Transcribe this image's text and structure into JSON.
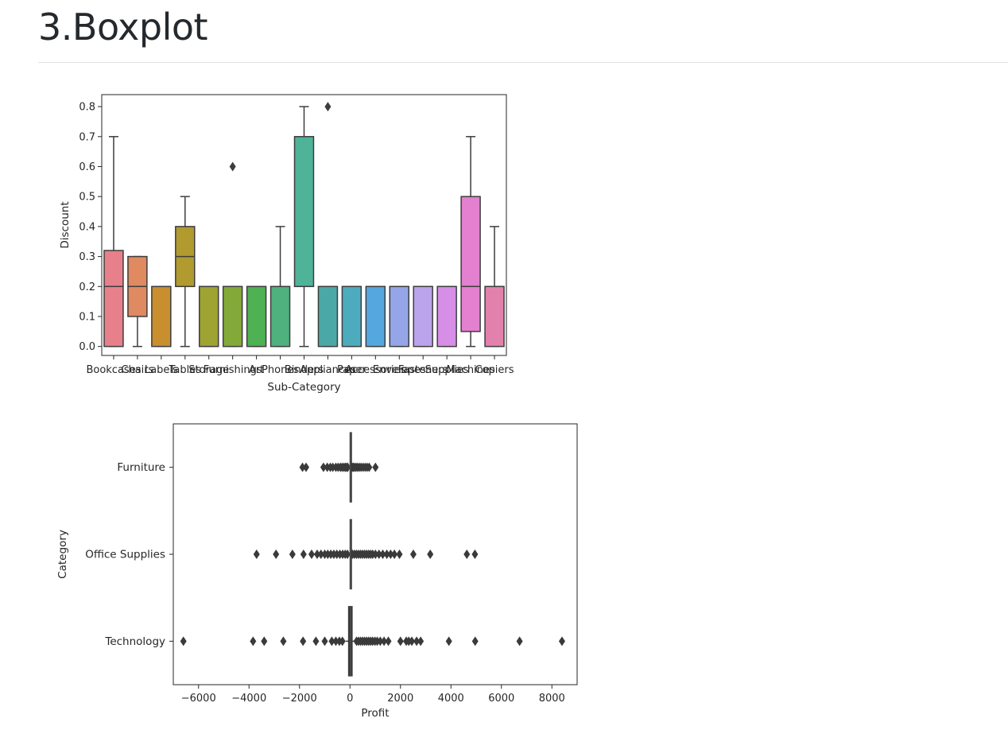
{
  "page": {
    "heading": "3.Boxplot"
  },
  "chart_data": [
    {
      "type": "boxplot",
      "orientation": "vertical",
      "xlabel": "Sub-Category",
      "ylabel": "Discount",
      "ylim": [
        -0.03,
        0.84
      ],
      "yticks": [
        "0.0",
        "0.1",
        "0.2",
        "0.3",
        "0.4",
        "0.5",
        "0.6",
        "0.7",
        "0.8"
      ],
      "categories": [
        "Bookcases",
        "Chairs",
        "Labels",
        "Tables",
        "Storage",
        "Furnishings",
        "Art",
        "Phones",
        "Binders",
        "Appliances",
        "Paper",
        "Accessories",
        "Envelopes",
        "Fasteners",
        "Supplies",
        "Machines",
        "Copiers"
      ],
      "boxes": [
        {
          "q1": 0.0,
          "median": 0.2,
          "q3": 0.32,
          "whisker_low": 0.0,
          "whisker_high": 0.7,
          "fliers": [],
          "color": "#e8808c"
        },
        {
          "q1": 0.1,
          "median": 0.2,
          "q3": 0.3,
          "whisker_low": 0.0,
          "whisker_high": 0.3,
          "fliers": [],
          "color": "#df8a60"
        },
        {
          "q1": 0.0,
          "median": 0.2,
          "q3": 0.2,
          "whisker_low": 0.0,
          "whisker_high": 0.2,
          "fliers": [],
          "color": "#c98e2e"
        },
        {
          "q1": 0.2,
          "median": 0.3,
          "q3": 0.4,
          "whisker_low": 0.0,
          "whisker_high": 0.5,
          "fliers": [],
          "color": "#b19a2e"
        },
        {
          "q1": 0.0,
          "median": 0.2,
          "q3": 0.2,
          "whisker_low": 0.0,
          "whisker_high": 0.2,
          "fliers": [],
          "color": "#9ea332"
        },
        {
          "q1": 0.0,
          "median": 0.2,
          "q3": 0.2,
          "whisker_low": 0.0,
          "whisker_high": 0.2,
          "fliers": [
            0.6
          ],
          "color": "#83aa38"
        },
        {
          "q1": 0.0,
          "median": 0.2,
          "q3": 0.2,
          "whisker_low": 0.0,
          "whisker_high": 0.2,
          "fliers": [],
          "color": "#4eb153"
        },
        {
          "q1": 0.0,
          "median": 0.2,
          "q3": 0.2,
          "whisker_low": 0.0,
          "whisker_high": 0.4,
          "fliers": [],
          "color": "#4fb17e"
        },
        {
          "q1": 0.2,
          "median": 0.2,
          "q3": 0.7,
          "whisker_low": 0.0,
          "whisker_high": 0.8,
          "fliers": [],
          "color": "#4fb39a"
        },
        {
          "q1": 0.0,
          "median": 0.2,
          "q3": 0.2,
          "whisker_low": 0.0,
          "whisker_high": 0.2,
          "fliers": [
            0.8
          ],
          "color": "#4aa9a6"
        },
        {
          "q1": 0.0,
          "median": 0.2,
          "q3": 0.2,
          "whisker_low": 0.0,
          "whisker_high": 0.2,
          "fliers": [],
          "color": "#4cacbe"
        },
        {
          "q1": 0.0,
          "median": 0.2,
          "q3": 0.2,
          "whisker_low": 0.0,
          "whisker_high": 0.2,
          "fliers": [],
          "color": "#55a8df"
        },
        {
          "q1": 0.0,
          "median": 0.2,
          "q3": 0.2,
          "whisker_low": 0.0,
          "whisker_high": 0.2,
          "fliers": [],
          "color": "#95a5e8"
        },
        {
          "q1": 0.0,
          "median": 0.2,
          "q3": 0.2,
          "whisker_low": 0.0,
          "whisker_high": 0.2,
          "fliers": [],
          "color": "#bba4eb"
        },
        {
          "q1": 0.0,
          "median": 0.2,
          "q3": 0.2,
          "whisker_low": 0.0,
          "whisker_high": 0.2,
          "fliers": [],
          "color": "#d78ee6"
        },
        {
          "q1": 0.05,
          "median": 0.2,
          "q3": 0.5,
          "whisker_low": 0.0,
          "whisker_high": 0.7,
          "fliers": [],
          "color": "#e380cf"
        },
        {
          "q1": 0.0,
          "median": 0.2,
          "q3": 0.2,
          "whisker_low": 0.0,
          "whisker_high": 0.4,
          "fliers": [],
          "color": "#e381ad"
        }
      ],
      "grid": false
    },
    {
      "type": "boxplot",
      "orientation": "horizontal",
      "xlabel": "Profit",
      "ylabel": "Category",
      "xlim": [
        -7000,
        9000
      ],
      "xticks": [
        "−6000",
        "−4000",
        "−2000",
        "0",
        "2000",
        "4000",
        "6000",
        "8000"
      ],
      "categories": [
        "Furniture",
        "Office Supplies",
        "Technology"
      ],
      "boxes": [
        {
          "q1": 0,
          "median": 5,
          "q3": 12,
          "whisker_low": -30,
          "whisker_high": 50,
          "fliers": [
            -1880,
            -1740,
            -1050,
            -900,
            -780,
            -680,
            -560,
            -470,
            -380,
            -310,
            -240,
            -180,
            -130,
            -90,
            90,
            130,
            180,
            240,
            300,
            370,
            440,
            520,
            600,
            680,
            760,
            1010
          ]
        },
        {
          "q1": 0,
          "median": 7,
          "q3": 25,
          "whisker_low": -30,
          "whisker_high": 60,
          "fliers": [
            -3700,
            -2930,
            -2280,
            -1840,
            -1520,
            -1300,
            -1150,
            -1000,
            -880,
            -760,
            -640,
            -520,
            -400,
            -290,
            -190,
            -100,
            100,
            180,
            260,
            340,
            420,
            500,
            580,
            660,
            740,
            820,
            900,
            1010,
            1150,
            1300,
            1460,
            1610,
            1760,
            1960,
            2510,
            3180,
            4630,
            4950
          ]
        },
        {
          "q1": -60,
          "median": 18,
          "q3": 90,
          "whisker_low": -170,
          "whisker_high": 210,
          "fliers": [
            -6600,
            -3840,
            -3400,
            -2640,
            -1860,
            -1350,
            -1000,
            -720,
            -560,
            -420,
            -300,
            260,
            340,
            420,
            500,
            580,
            660,
            740,
            820,
            900,
            990,
            1080,
            1200,
            1350,
            1520,
            2000,
            2230,
            2330,
            2450,
            2640,
            2800,
            3920,
            4960,
            6720,
            8400
          ]
        }
      ],
      "color": "#3a3a3a",
      "grid": false
    }
  ]
}
